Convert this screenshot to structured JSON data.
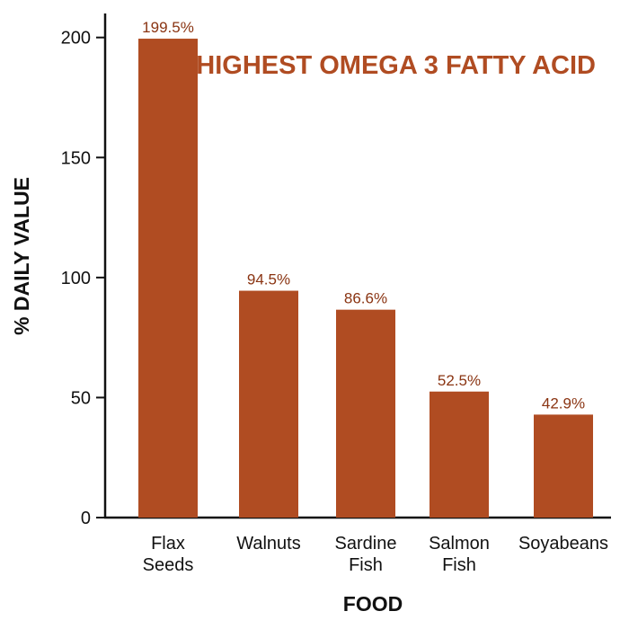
{
  "colors": {
    "bar": "#b04c22",
    "title": "#b04c22",
    "axis": "#111111",
    "data_label": "#8a3412"
  },
  "chart_data": {
    "type": "bar",
    "title": "HIGHEST OMEGA 3 FATTY ACID",
    "xlabel": "FOOD",
    "ylabel": "% DAILY VALUE",
    "categories": [
      [
        "Flax",
        "Seeds"
      ],
      [
        "Walnuts"
      ],
      [
        "Sardine",
        "Fish"
      ],
      [
        "Salmon",
        "Fish"
      ],
      [
        "Soyabeans"
      ]
    ],
    "values": [
      199.5,
      94.5,
      86.6,
      52.5,
      42.9
    ],
    "value_labels": [
      "199.5%",
      "94.5%",
      "86.6%",
      "52.5%",
      "42.9%"
    ],
    "ylim": [
      0,
      210
    ],
    "yticks": [
      0,
      50,
      100,
      150,
      200
    ],
    "grid": false,
    "legend": "none"
  }
}
